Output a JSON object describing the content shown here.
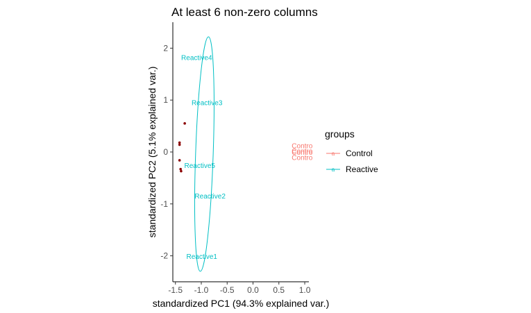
{
  "chart_data": {
    "type": "scatter",
    "title": "At least 6 non-zero columns",
    "xlabel": "standardized PC1 (94.3% explained var.)",
    "ylabel": "standardized PC2 (5.1% explained var.)",
    "xlim": [
      -1.55,
      1.08
    ],
    "ylim": [
      -2.5,
      2.5
    ],
    "xticks": [
      -1.5,
      -1.0,
      -0.5,
      0.0,
      0.5,
      1.0
    ],
    "xtick_labels": [
      "-1.5",
      "-1.0",
      "-0.5",
      "0.0",
      "0.5",
      "1.0"
    ],
    "yticks": [
      -2,
      -1,
      0,
      1,
      2
    ],
    "ytick_labels": [
      "-2",
      "-1",
      "0",
      "1",
      "2"
    ],
    "grid": false,
    "legend": {
      "title": "groups",
      "position": "right",
      "entries": [
        {
          "label": "Control",
          "color": "#F8766D"
        },
        {
          "label": "Reactive",
          "color": "#00BFC4"
        }
      ]
    },
    "labeled_points": [
      {
        "label": "Contro",
        "group": "Control",
        "x": 0.95,
        "y": 0.12
      },
      {
        "label": "Contro",
        "group": "Control",
        "x": 0.95,
        "y": 0.02
      },
      {
        "label": "Contro",
        "group": "Control",
        "x": 0.95,
        "y": -0.01
      },
      {
        "label": "Contro",
        "group": "Control",
        "x": 0.95,
        "y": -0.11
      },
      {
        "label": "Reactive4",
        "group": "Reactive",
        "x": -1.09,
        "y": 1.82
      },
      {
        "label": "Reactive3",
        "group": "Reactive",
        "x": -0.89,
        "y": 0.95
      },
      {
        "label": "Reactive5",
        "group": "Reactive",
        "x": -1.03,
        "y": -0.26
      },
      {
        "label": "Reactive2",
        "group": "Reactive",
        "x": -0.83,
        "y": -0.85
      },
      {
        "label": "Reactive1",
        "group": "Reactive",
        "x": -0.99,
        "y": -2.01
      }
    ],
    "ellipse": {
      "group": "Reactive",
      "cx": -0.94,
      "cy": -0.04,
      "rx": 0.17,
      "ry": 2.26
    },
    "variable_points": {
      "color": "#8B0000",
      "points": [
        {
          "x": -1.32,
          "y": 0.55
        },
        {
          "x": -1.42,
          "y": 0.18
        },
        {
          "x": -1.42,
          "y": 0.14
        },
        {
          "x": -1.42,
          "y": -0.16
        },
        {
          "x": -1.4,
          "y": -0.33
        },
        {
          "x": -1.39,
          "y": -0.37
        }
      ]
    }
  }
}
